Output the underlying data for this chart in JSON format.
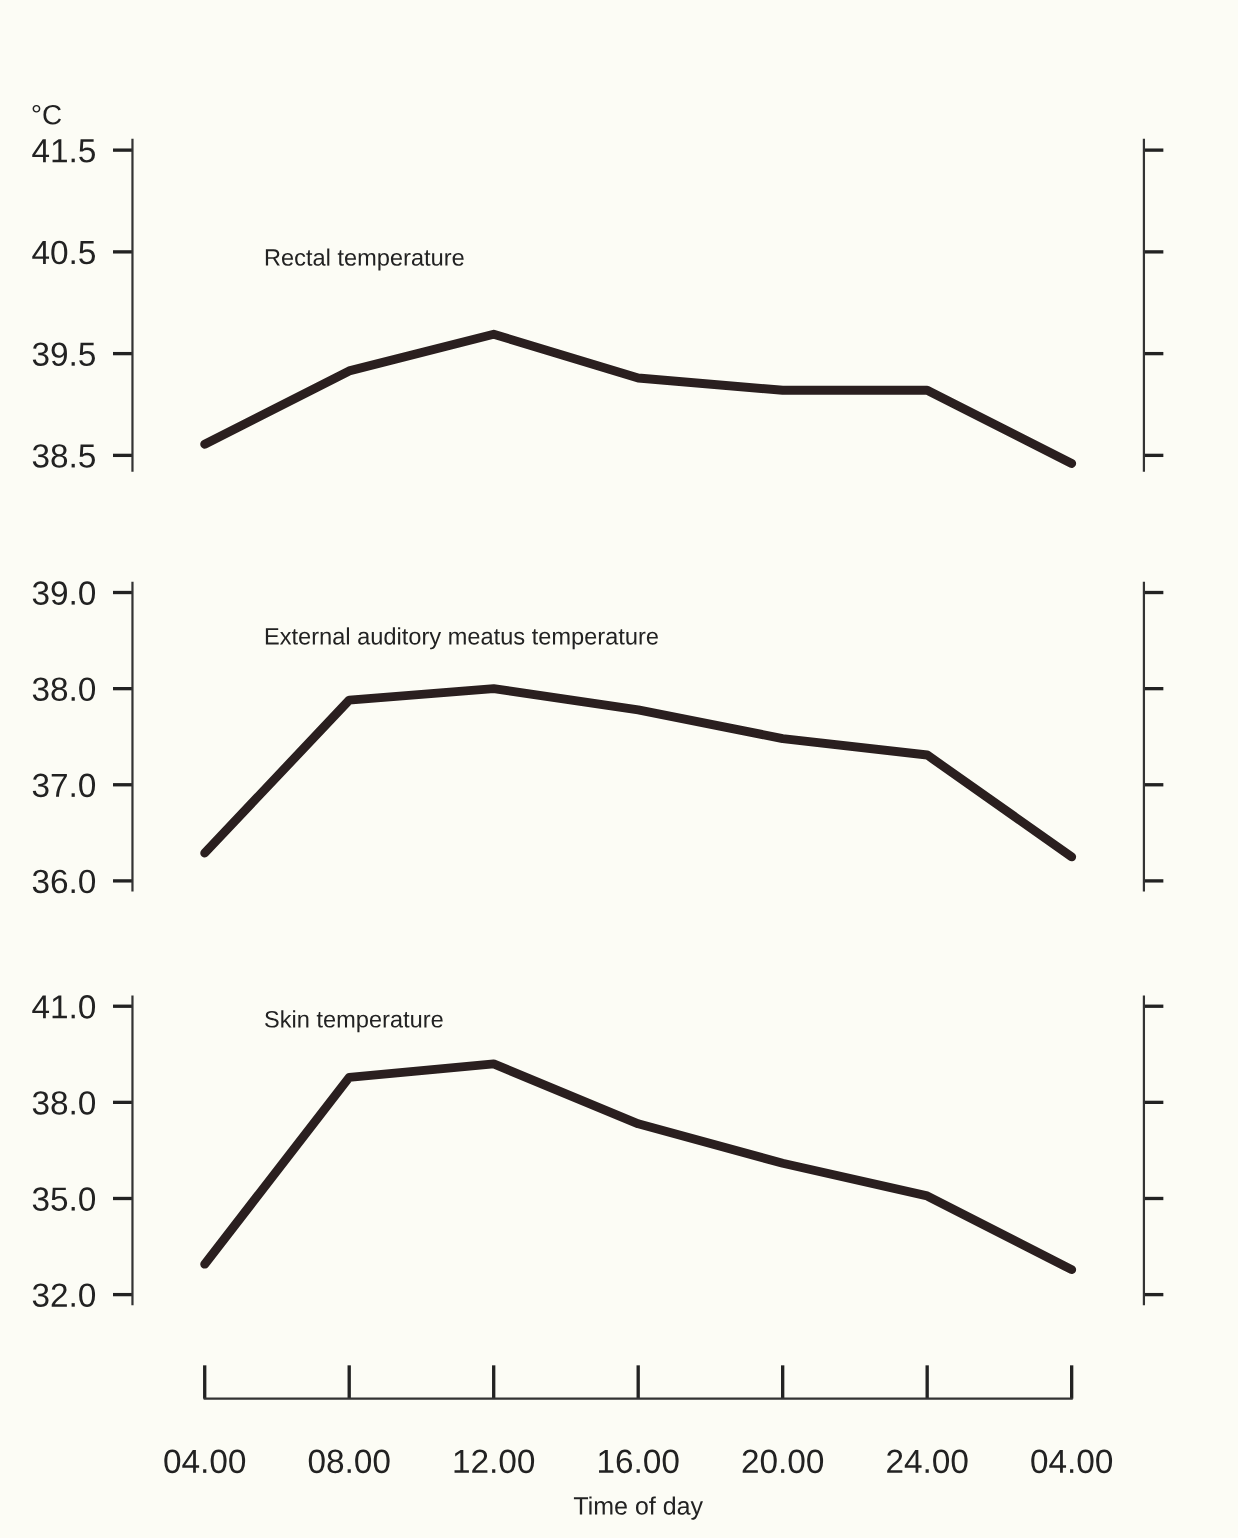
{
  "chart_data": [
    {
      "type": "line",
      "ylabel": "°C",
      "categories": [
        "04.00",
        "08.00",
        "12.00",
        "16.00",
        "20.00",
        "24.00",
        "04.00"
      ],
      "series": [
        {
          "name": "Rectal temperature",
          "color": "#2a1f1f",
          "values": [
            38.61,
            39.33,
            39.69,
            39.26,
            39.14,
            39.14,
            38.42
          ]
        }
      ],
      "ylim": [
        38.35,
        41.6
      ],
      "yticks": [
        {
          "value": 38.5,
          "label": "38.5"
        },
        {
          "value": 39.5,
          "label": "39.5"
        },
        {
          "value": 40.5,
          "label": "40.5"
        },
        {
          "value": 41.5,
          "label": "41.5"
        }
      ],
      "tick_labels": "y"
    },
    {
      "type": "line",
      "categories": [
        "04.00",
        "08.00",
        "12.00",
        "16.00",
        "20.00",
        "24.00",
        "04.00"
      ],
      "series": [
        {
          "name": "External auditory meatus temperature",
          "color": "#2a1f1f",
          "values": [
            36.29,
            37.88,
            38.0,
            37.78,
            37.48,
            37.31,
            36.25
          ]
        }
      ],
      "ylim": [
        35.9,
        39.1
      ],
      "yticks": [
        {
          "value": 36,
          "label": "36.0"
        },
        {
          "value": 37,
          "label": "37.0"
        },
        {
          "value": 38,
          "label": "38.0"
        },
        {
          "value": 39,
          "label": "39.0"
        }
      ],
      "tick_labels": "y"
    },
    {
      "type": "line",
      "xlabel": "Time of day",
      "categories": [
        "04.00",
        "08.00",
        "12.00",
        "16.00",
        "20.00",
        "24.00",
        "04.00"
      ],
      "series": [
        {
          "name": "Skin temperature",
          "color": "#2a1f1f",
          "values": [
            32.95,
            38.78,
            39.2,
            37.33,
            36.1,
            35.08,
            32.78
          ]
        }
      ],
      "ylim": [
        31.7,
        41.3
      ],
      "yticks": [
        {
          "value": 32,
          "label": "32.0"
        },
        {
          "value": 35,
          "label": "35.0"
        },
        {
          "value": 38,
          "label": "38.0"
        },
        {
          "value": 41,
          "label": "41.0"
        }
      ]
    }
  ]
}
